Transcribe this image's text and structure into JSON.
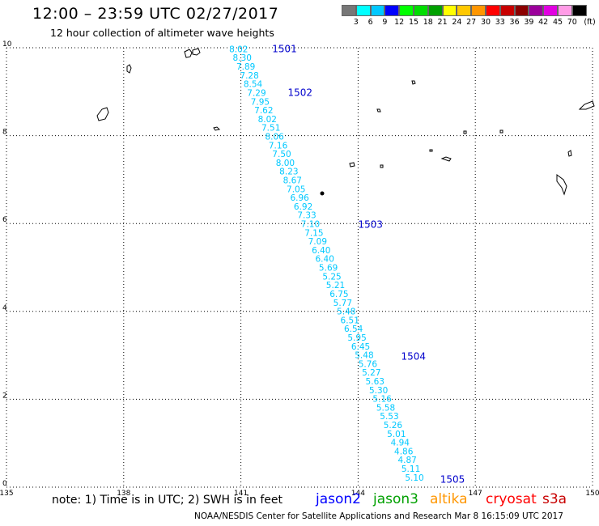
{
  "header": {
    "title": "12:00 – 23:59 UTC 02/27/2017",
    "subtitle": "12 hour collection of altimeter wave heights"
  },
  "legend": {
    "colors": [
      "#777777",
      "#00ffff",
      "#00c8ff",
      "#0000ff",
      "#00ff00",
      "#00dd00",
      "#00a000",
      "#ffff00",
      "#ffc800",
      "#ff9600",
      "#ff0000",
      "#c80000",
      "#8b0000",
      "#9b009b",
      "#e100e1",
      "#ff9be6",
      "#000000"
    ],
    "labels": [
      "3",
      "6",
      "9",
      "12",
      "15",
      "18",
      "21",
      "24",
      "27",
      "30",
      "33",
      "36",
      "39",
      "42",
      "45",
      "70"
    ],
    "unit": "(ft)"
  },
  "axes": {
    "lon_ticks": [
      "135",
      "138",
      "141",
      "144",
      "147",
      "150"
    ],
    "lat_ticks": [
      "0",
      "2",
      "4",
      "6",
      "8",
      "10"
    ]
  },
  "chart_data": {
    "type": "scatter",
    "xlim": [
      135,
      150
    ],
    "ylim": [
      0,
      10
    ],
    "grid": true,
    "pass_labels": [
      {
        "text": "1501",
        "lon": 141.8,
        "lat": 9.9
      },
      {
        "text": "1502",
        "lon": 142.2,
        "lat": 8.9
      },
      {
        "text": "1503",
        "lon": 144.0,
        "lat": 5.9
      },
      {
        "text": "1504",
        "lon": 145.1,
        "lat": 2.9
      },
      {
        "text": "1505",
        "lon": 146.1,
        "lat": 0.1
      }
    ],
    "series": [
      {
        "values": [
          "8.02",
          "8.30",
          "7.89",
          "7.28",
          "8.54",
          "7.29",
          "7.95",
          "7.62",
          "8.02",
          "7.51",
          "8.06",
          "7.16",
          "7.50",
          "8.00",
          "8.23",
          "8.67",
          "7.05",
          "6.96",
          "6.92",
          "7.33",
          "7.10",
          "7.15",
          "7.09",
          "6.40",
          "6.40",
          "5.69",
          "5.25",
          "5.21",
          "6.75",
          "5.77",
          "5.48",
          "6.51",
          "6.54",
          "5.95",
          "6.45",
          "5.48",
          "5.76",
          "5.27",
          "5.63",
          "5.30",
          "5.16",
          "5.58",
          "5.53",
          "5.26",
          "5.01",
          "4.94",
          "4.86",
          "4.87",
          "5.11",
          "5.10"
        ],
        "lat_start": 9.9,
        "lat_end": 0.15,
        "lon_start": 140.7,
        "lon_end": 145.2
      }
    ]
  },
  "footer": {
    "note": "note: 1) Time is in UTC; 2) SWH is in feet",
    "satellites": [
      {
        "name": "jason2",
        "color": "#0000ff"
      },
      {
        "name": "jason3",
        "color": "#00a000"
      },
      {
        "name": "altika",
        "color": "#ff9600"
      },
      {
        "name": "cryosat",
        "color": "#ff0000"
      },
      {
        "name": "s3a",
        "color": "#c80000"
      }
    ],
    "credit": "NOAA/NESDIS Center for Satellite Applications and Research    Mar  8 16:15:09 UTC 2017"
  }
}
